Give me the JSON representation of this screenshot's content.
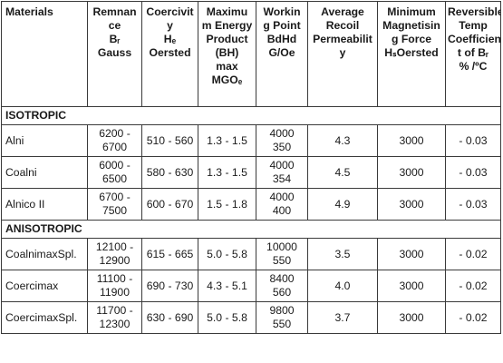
{
  "headers": [
    {
      "key": "materials",
      "lines": [
        "Materials"
      ]
    },
    {
      "key": "remnance",
      "lines": [
        "Remnan",
        "ce",
        "Bᵣ",
        "Gauss"
      ]
    },
    {
      "key": "coercivity",
      "lines": [
        "Coercivit",
        "y",
        "Hₑ",
        "Oersted"
      ]
    },
    {
      "key": "max-energy",
      "lines": [
        "Maximu",
        "m Energy",
        "Product",
        "(BH)",
        "max",
        "MGOₑ"
      ]
    },
    {
      "key": "working-point",
      "lines": [
        "Workin",
        "g Point",
        "BdHd",
        "G/Oe"
      ]
    },
    {
      "key": "recoil",
      "lines": [
        "Average",
        "Recoil",
        "Permeabilit",
        "y"
      ]
    },
    {
      "key": "magnetising",
      "lines": [
        "Minimum",
        "Magnetisin",
        "g Force",
        "HₛOersted"
      ]
    },
    {
      "key": "temp-coeff",
      "lines": [
        "Reversible",
        "Temp",
        "Coefficien",
        "t of Bᵣ",
        "% /ºC"
      ]
    }
  ],
  "sections": [
    {
      "title": "ISOTROPIC",
      "rows": [
        {
          "material": "Alni",
          "remnance": [
            "6200 -",
            "6700"
          ],
          "coercivity": "510 - 560",
          "energy": "1.3 - 1.5",
          "working": [
            "4000",
            "350"
          ],
          "recoil": "4.3",
          "magnetising": "3000",
          "coeff": "- 0.03"
        },
        {
          "material": "Coalni",
          "remnance": [
            "6000 -",
            "6500"
          ],
          "coercivity": "580 - 630",
          "energy": "1.3 - 1.5",
          "working": [
            "4000",
            "354"
          ],
          "recoil": "4.5",
          "magnetising": "3000",
          "coeff": "- 0.03"
        },
        {
          "material": "Alnico II",
          "remnance": [
            "6700 -",
            "7500"
          ],
          "coercivity": "600 - 670",
          "energy": "1.5 - 1.8",
          "working": [
            "4000",
            "400"
          ],
          "recoil": "4.9",
          "magnetising": "3000",
          "coeff": "- 0.03"
        }
      ]
    },
    {
      "title": "ANISOTROPIC",
      "rows": [
        {
          "material": "CoalnimaxSpl.",
          "remnance": [
            "12100 -",
            "12900"
          ],
          "coercivity": "615 - 665",
          "energy": "5.0 - 5.8",
          "working": [
            "10000",
            "550"
          ],
          "recoil": "3.5",
          "magnetising": "3000",
          "coeff": "- 0.02"
        },
        {
          "material": "Coercimax",
          "remnance": [
            "11100 -",
            "11900"
          ],
          "coercivity": "690 - 730",
          "energy": "4.3 - 5.1",
          "working": [
            "8400",
            "560"
          ],
          "recoil": "4.0",
          "magnetising": "3000",
          "coeff": "- 0.02"
        },
        {
          "material": "CoercimaxSpl.",
          "remnance": [
            "11700 -",
            "12300"
          ],
          "coercivity": "630 - 690",
          "energy": "5.0 - 5.8",
          "working": [
            "9800",
            "550"
          ],
          "recoil": "3.7",
          "magnetising": "3000",
          "coeff": "- 0.02"
        }
      ]
    }
  ]
}
